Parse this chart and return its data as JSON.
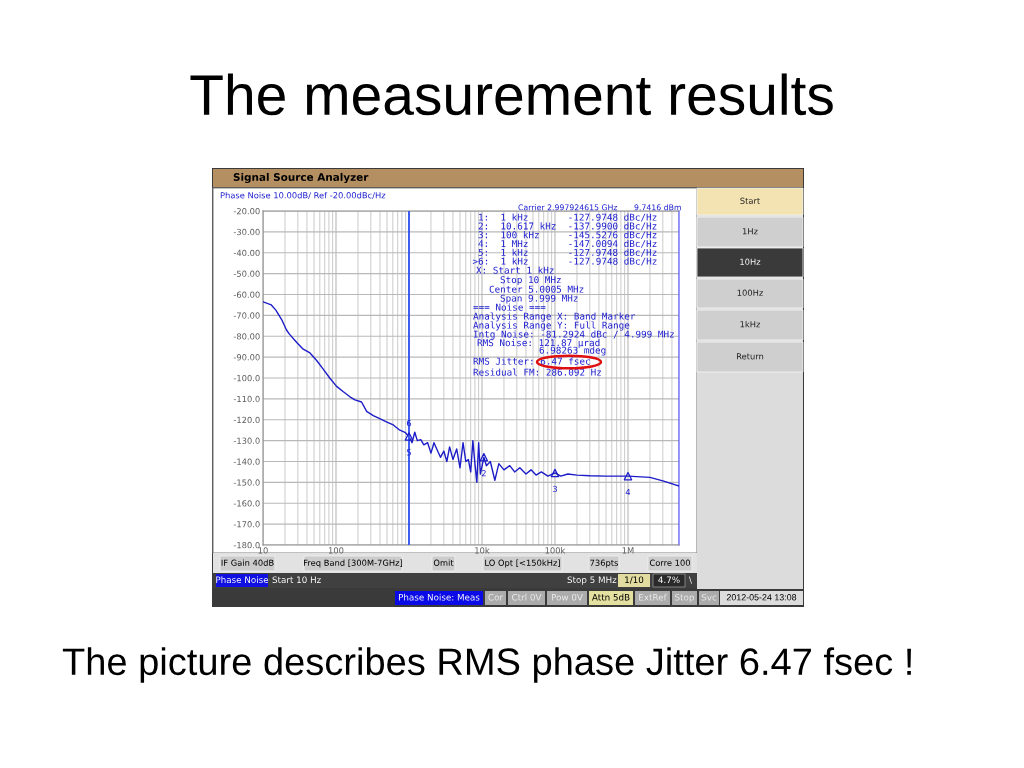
{
  "chart_data": {
    "type": "line",
    "title": "The measurement results",
    "x": [
      10,
      13,
      15,
      18,
      21,
      23,
      29,
      35,
      44,
      54,
      66,
      82,
      102,
      125,
      155,
      182,
      224,
      263,
      324,
      398,
      490,
      610,
      750,
      880,
      1000,
      1100,
      1200,
      1300,
      1450,
      1600,
      1800,
      2000,
      2200,
      2400,
      2700,
      3000,
      3300,
      3600,
      4000,
      4500,
      5000,
      5500,
      6000,
      6500,
      7000,
      7500,
      8000,
      8500,
      9000,
      9500,
      10617,
      11500,
      13000,
      15000,
      17000,
      20000,
      24000,
      28000,
      33000,
      40000,
      47000,
      55000,
      65000,
      80000,
      100000,
      120000,
      150000,
      200000,
      300000,
      500000,
      1000000,
      2000000,
      3000000,
      5000000
    ],
    "series": [
      {
        "color": "#1c1cc8",
        "values": [
          -63.5,
          -65,
          -67.5,
          -72,
          -77,
          -79,
          -83,
          -86,
          -88,
          -91.5,
          -95.5,
          -100,
          -104,
          -106.5,
          -109,
          -110.5,
          -111.5,
          -116,
          -118,
          -119.5,
          -121,
          -122.5,
          -125,
          -126,
          -128,
          -131,
          -126,
          -130,
          -129.5,
          -132,
          -131,
          -136,
          -131,
          -134,
          -138,
          -135,
          -140,
          -133,
          -139,
          -134,
          -143,
          -131,
          -140,
          -139,
          -145,
          -130,
          -141,
          -150,
          -131,
          -146,
          -138,
          -142,
          -140,
          -149,
          -141,
          -144,
          -142,
          -145,
          -143,
          -146,
          -144,
          -146.5,
          -145,
          -147,
          -145.5,
          -147,
          -146,
          -146.5,
          -146.8,
          -147,
          -147,
          -147.6,
          -149.3,
          -151.7
        ]
      },
      {
        "type": "scatter",
        "marker": "triangle",
        "color": "#1c1cc8",
        "x": [
          1000,
          10617,
          100000,
          1000000
        ],
        "values": [
          -127.9748,
          -137.99,
          -145.5276,
          -147.0094
        ]
      }
    ],
    "log": "x",
    "xlim": [
      10,
      5000000
    ],
    "ylim": [
      -180,
      -20
    ],
    "xticks": [
      10,
      100,
      {
        "value": 1000,
        "label": null
      },
      {
        "value": 10000,
        "label": "10k"
      },
      {
        "value": 100000,
        "label": "100k"
      },
      {
        "value": 1000000,
        "label": "1M"
      }
    ],
    "yticks": [
      {
        "value": -20,
        "label": "-20.00"
      },
      {
        "value": -30,
        "label": "-30.00"
      },
      {
        "value": -40,
        "label": "-40.00"
      },
      {
        "value": -50,
        "label": "-50.00"
      },
      {
        "value": -60,
        "label": "-60.00"
      },
      {
        "value": -70,
        "label": "-70.00"
      },
      {
        "value": -80,
        "label": "-80.00"
      },
      {
        "value": -90,
        "label": "-90.00"
      },
      {
        "value": -100,
        "label": "-100.0"
      },
      {
        "value": -110,
        "label": "-110.0"
      },
      {
        "value": -120,
        "label": "-120.0"
      },
      {
        "value": -130,
        "label": "-130.0"
      },
      {
        "value": -140,
        "label": "-140.0"
      },
      {
        "value": -150,
        "label": "-150.0"
      },
      {
        "value": -160,
        "label": "-160.0"
      },
      {
        "value": -170,
        "label": "-170.0"
      },
      {
        "value": -180,
        "label": "-180.0"
      }
    ],
    "grid": true,
    "ref_lines": [
      {
        "axis": "x",
        "value": 1000,
        "color": "#3a5af0"
      }
    ],
    "annotations": [
      "The picture describes RMS phase Jitter 6.47 fsec !",
      "Signal Source Analyzer",
      "Phase Noise 10.00dB/ Ref -20.00dBc/Hz",
      "Carrier 2.997924615 GHz",
      "9.7416 dBm",
      "1:  1 kHz       -127.9748 dBc/Hz",
      "2:  10.617 kHz  -137.9900 dBc/Hz",
      "3:  100 kHz     -145.5276 dBc/Hz",
      "4:  1 MHz       -147.0094 dBc/Hz",
      "5:  1 kHz       -127.9748 dBc/Hz",
      ">6:  1 kHz       -127.9748 dBc/Hz",
      "X: Start 1 kHz",
      "Stop 10 MHz",
      "Center 5.0005 MHz",
      "Span 9.999 MHz",
      "=== Noise ===",
      "Analysis Range X: Band Marker",
      "Analysis Range Y: Full Range",
      "Intg Noise: -81.2924 dBc / 4.999 MHz",
      "RMS Noise: 121.87 µrad",
      "6.98263 mdeg",
      "RMS Jitter: 6.47 fsec",
      "Residual FM: 286.092 Hz",
      "Start",
      "1Hz",
      "10Hz",
      "100Hz",
      "1kHz",
      "Return",
      "IF Gain 40dB",
      "Freq Band [300M-7GHz]",
      "Omit",
      "LO Opt [<150kHz]",
      "736pts",
      "Corre 100",
      "Phase Noise",
      "Start 10 Hz",
      "Stop 5 MHz",
      "1/10",
      "4.7%",
      "\\",
      "Phase Noise: Meas",
      "Cor",
      "Ctrl 0V",
      "Pow 0V",
      "Attn 5dB",
      "ExtRef",
      "Stop",
      "Svc",
      "2012-05-24 13:08",
      {
        "text": "6",
        "x": 1000,
        "y": -127.9748
      },
      {
        "text": "5",
        "x": 1000,
        "y": -127.9748
      },
      {
        "text": "2",
        "x": 10617,
        "y": -137.99
      },
      {
        "text": "3",
        "x": 100000,
        "y": -145.5276
      },
      {
        "text": "4",
        "x": 1000000,
        "y": -147.0094
      }
    ]
  }
}
